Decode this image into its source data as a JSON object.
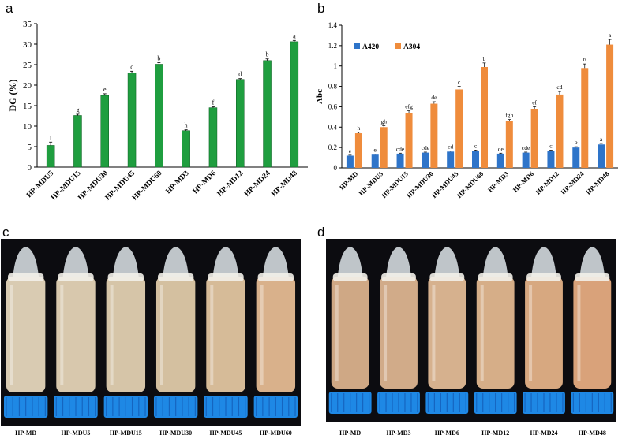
{
  "panels": {
    "a": "a",
    "b": "b",
    "c": "c",
    "d": "d"
  },
  "chart_data": [
    {
      "type": "bar",
      "panel": "a",
      "ylabel": "DG (%)",
      "ylim": [
        0,
        35
      ],
      "yticks": [
        0,
        5,
        10,
        15,
        20,
        25,
        30,
        35
      ],
      "grid": false,
      "categories": [
        "HP-MDU5",
        "HP-MDU15",
        "HP-MDU30",
        "HP-MDU45",
        "HP-MDU60",
        "HP-MD3",
        "HP-MD6",
        "HP-MD12",
        "HP-MD24",
        "HP-MD48"
      ],
      "values": [
        5.3,
        12.6,
        17.5,
        23.0,
        25.1,
        8.9,
        14.5,
        21.4,
        26.0,
        30.6
      ],
      "errors": [
        0.8,
        0.3,
        0.4,
        0.4,
        0.4,
        0.2,
        0.2,
        0.2,
        0.4,
        0.3
      ],
      "letters": [
        "i",
        "g",
        "e",
        "c",
        "b",
        "h",
        "f",
        "d",
        "b",
        "a"
      ],
      "color": "#1f9e3f"
    },
    {
      "type": "bar",
      "panel": "b",
      "ylabel": "Abc",
      "ylim": [
        0,
        1.4
      ],
      "yticks": [
        0,
        0.2,
        0.4,
        0.6,
        0.8,
        1.0,
        1.2,
        1.4
      ],
      "ytick_labels": [
        "0",
        "0.2",
        "0.4",
        "0.6",
        "0.8",
        "1",
        "1.2",
        "1.4"
      ],
      "grid": false,
      "legend": "top-left",
      "categories": [
        "HP-MD",
        "HP-MDU5",
        "HP-MDU15",
        "HP-MDU30",
        "HP-MDU45",
        "HP-MDU60",
        "HP-MD3",
        "HP-MD6",
        "HP-MD12",
        "HP-MD24",
        "HP-MD48"
      ],
      "series": [
        {
          "name": "A420",
          "color": "#2e74c9",
          "values": [
            0.12,
            0.13,
            0.14,
            0.15,
            0.16,
            0.17,
            0.14,
            0.15,
            0.17,
            0.2,
            0.23
          ],
          "errors": [
            0.005,
            0.005,
            0.005,
            0.005,
            0.005,
            0.005,
            0.005,
            0.005,
            0.005,
            0.008,
            0.01
          ],
          "letters": [
            "e",
            "e",
            "cde",
            "cde",
            "cd",
            "c",
            "de",
            "cde",
            "c",
            "b",
            "a"
          ]
        },
        {
          "name": "A304",
          "color": "#ef8c3c",
          "values": [
            0.34,
            0.4,
            0.54,
            0.63,
            0.77,
            0.99,
            0.46,
            0.58,
            0.72,
            0.98,
            1.21
          ],
          "errors": [
            0.01,
            0.015,
            0.02,
            0.02,
            0.03,
            0.04,
            0.015,
            0.02,
            0.03,
            0.04,
            0.05
          ],
          "letters": [
            "h",
            "gh",
            "efg",
            "de",
            "c",
            "b",
            "fgh",
            "ef",
            "cd",
            "b",
            "a"
          ]
        }
      ]
    }
  ],
  "photo_c": {
    "labels": [
      "HP-MD",
      "HP-MDU5",
      "HP-MDU15",
      "HP-MDU30",
      "HP-MDU45",
      "HP-MDU60"
    ],
    "tube_colors": [
      "#d9cbb2",
      "#d8c8ad",
      "#d6c5a8",
      "#d4c0a0",
      "#d6bb98",
      "#d9b18b"
    ],
    "cap_color": "#1e88e5",
    "background": "#0c0c10"
  },
  "photo_d": {
    "labels": [
      "HP-MD",
      "HP-MD3",
      "HP-MD6",
      "HP-MD12",
      "HP-MD24",
      "HP-MD48"
    ],
    "tube_colors": [
      "#cfa885",
      "#d1ab89",
      "#d6b18e",
      "#d6ae88",
      "#d7a880",
      "#d9a27a"
    ],
    "cap_color": "#1e88e5",
    "background": "#0c0c10"
  }
}
